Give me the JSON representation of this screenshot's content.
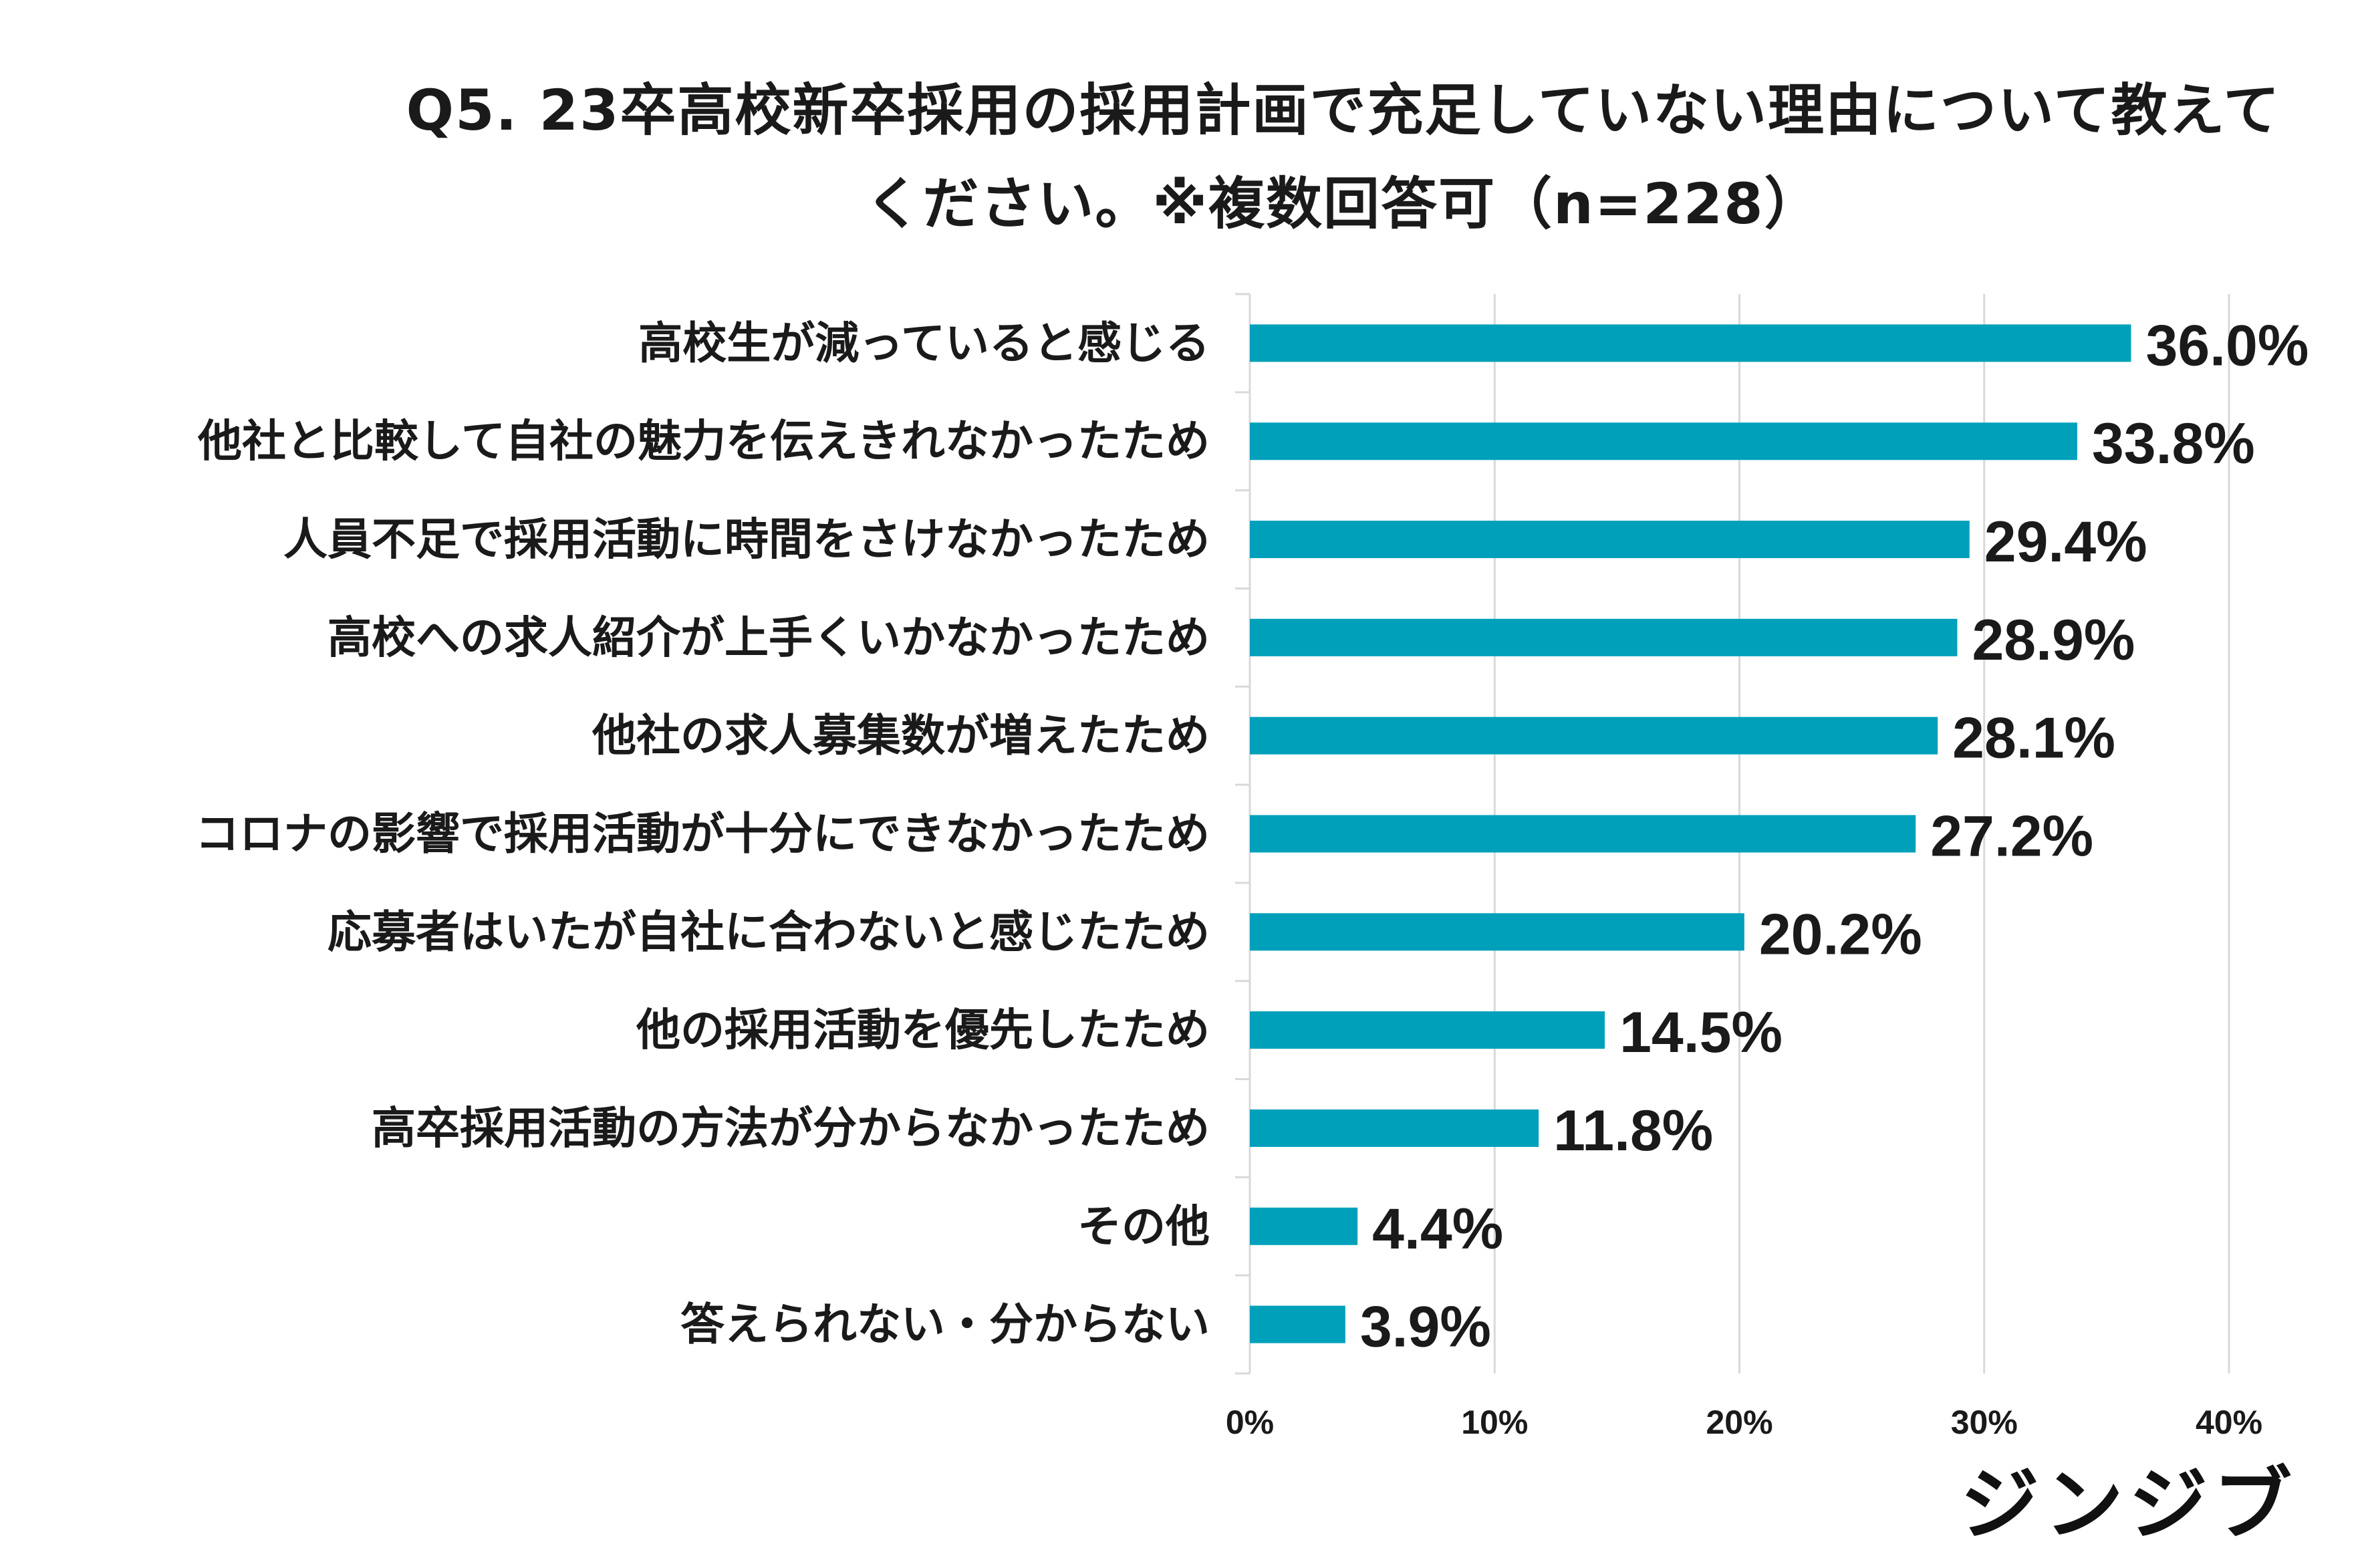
{
  "brand": {
    "logo_text": "ジンジブ"
  },
  "chart_data": {
    "type": "bar",
    "orientation": "horizontal",
    "title": "Q5. 23卒高校新卒採用の採用計画で充足していない理由について教えてください。※複数回答可（n=228）",
    "title_lines": [
      "Q5. 23卒高校新卒採用の採用計画で充足していない理由について教えて",
      "ください。※複数回答可（n=228）"
    ],
    "categories": [
      "高校生が減っていると感じる",
      "他社と比較して自社の魅力を伝えきれなかったため",
      "人員不足で採用活動に時間をさけなかったため",
      "高校への求人紹介が上手くいかなかったため",
      "他社の求人募集数が増えたため",
      "コロナの影響で採用活動が十分にできなかったため",
      "応募者はいたが自社に合わないと感じたため",
      "他の採用活動を優先したため",
      "高卒採用活動の方法が分からなかったため",
      "その他",
      "答えられない・分からない"
    ],
    "values": [
      36.0,
      33.8,
      29.4,
      28.9,
      28.1,
      27.2,
      20.2,
      14.5,
      11.8,
      4.4,
      3.9
    ],
    "value_labels": [
      "36.0%",
      "33.8%",
      "29.4%",
      "28.9%",
      "28.1%",
      "27.2%",
      "20.2%",
      "14.5%",
      "11.8%",
      "4.4%",
      "3.9%"
    ],
    "xlim": [
      0,
      40
    ],
    "xticks": [
      0,
      10,
      20,
      30,
      40
    ],
    "xtick_labels": [
      "0%",
      "10%",
      "20%",
      "30%",
      "40%"
    ],
    "xlabel": "",
    "ylabel": "",
    "grid": true,
    "bar_color": "#00a0bb",
    "grid_color": "#d9d9d9"
  }
}
